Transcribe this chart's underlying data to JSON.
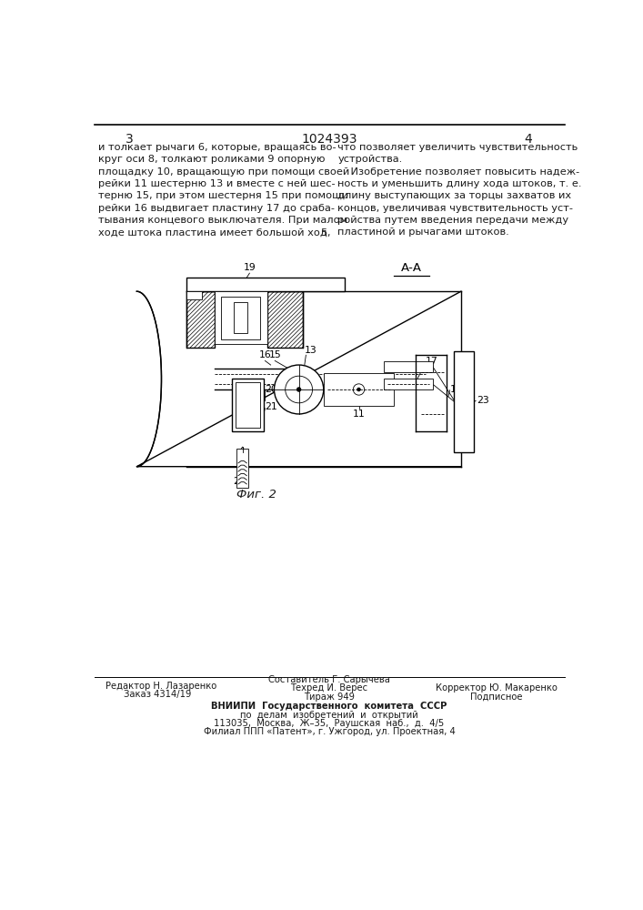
{
  "page_number_left": "3",
  "page_number_center": "1024393",
  "page_number_right": "4",
  "col_separator": "5",
  "text_left": "и толкает рычаги 6, которые, вращаясь во-\nкруг оси 8, толкают роликами 9 опорную\nплощадку 10, вращающую при помощи своей\nрейки 11 шестерню 13 и вместе с ней шес-\nтерню 15, при этом шестерня 15 при помощи\nрейки 16 выдвигает пластину 17 до сраба-\nтывания концевого выключателя. При малом\nходе штока пластина имеет большой ход,",
  "text_right": "что позволяет увеличить чувствительность\nустройства.\n    Изобретение позволяет повысить надеж-\nность и уменьшить длину хода штоков, т. е.\nдлину выступающих за торцы захватов их\nконцов, увеличивая чувствительность уст-\nройства путем введения передачи между\nпластиной и рычагами штоков.",
  "fig_label": "Фиг. 2",
  "section_label": "А-А",
  "footer_col1_line1": "Редактор Н. Лазаренко",
  "footer_col2_line1": "Составитель Г. Сарычева",
  "footer_col2_line2": "Техред И. Верес",
  "footer_col2_line3": "Тираж 949",
  "footer_col3_line1": "Корректор Ю. Макаренко",
  "footer_col3_line2": "Подписное",
  "footer_col1_line2": "Заказ 4314/19",
  "vniiipi_line1": "ВНИИПИ  Государственного  комитета  СССР",
  "vniiipi_line2": "по  делам  изобретений  и  открытий",
  "vniiipi_line3": "113035,  Москва,  Ж–35,  Раушская  наб.,  д.  4/5",
  "vniiipi_line4": "Филиал ППП «Патент», г. Ужгород, ул. Проектная, 4",
  "bg_color": "#ffffff",
  "text_color": "#1a1a1a",
  "border_color": "#000000",
  "font_size_body": 8.2,
  "font_size_header": 10,
  "font_size_footer": 7.2,
  "font_size_fig_label": 9.5,
  "font_size_label": 7.8
}
